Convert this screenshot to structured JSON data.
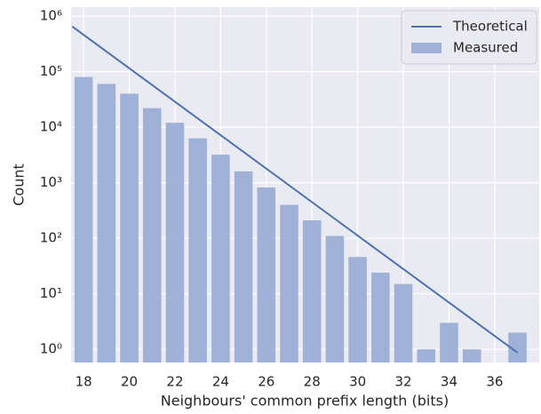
{
  "chart_data": {
    "type": "bar",
    "xlabel": "Neighbours' common prefix length (bits)",
    "ylabel": "Count",
    "log_y": true,
    "grid": true,
    "legend": "upper right",
    "xlim": [
      17.45,
      37.95
    ],
    "ylim": [
      0.58,
      1450000
    ],
    "xticks": [
      18,
      20,
      22,
      24,
      26,
      28,
      30,
      32,
      34,
      36
    ],
    "yticks": [
      {
        "value": 1,
        "label": "10⁰"
      },
      {
        "value": 10,
        "label": "10¹"
      },
      {
        "value": 100,
        "label": "10²"
      },
      {
        "value": 1000,
        "label": "10³"
      },
      {
        "value": 10000,
        "label": "10⁴"
      },
      {
        "value": 100000,
        "label": "10⁵"
      },
      {
        "value": 1000000,
        "label": "10⁶"
      }
    ],
    "series": [
      {
        "name": "Theoretical",
        "type": "line",
        "color": "#4c72b0",
        "x": [
          17.5,
          37
        ],
        "values": [
          650000,
          0.87
        ]
      },
      {
        "name": "Measured",
        "type": "bar",
        "color": "#9fb1d6",
        "x": [
          18,
          19,
          20,
          21,
          22,
          23,
          24,
          25,
          26,
          27,
          28,
          29,
          30,
          31,
          32,
          33,
          34,
          35,
          37
        ],
        "values": [
          80000,
          60000,
          40000,
          22000,
          12000,
          6300,
          3200,
          1600,
          820,
          400,
          210,
          110,
          46,
          24,
          15,
          1,
          3,
          1,
          2
        ]
      }
    ]
  }
}
